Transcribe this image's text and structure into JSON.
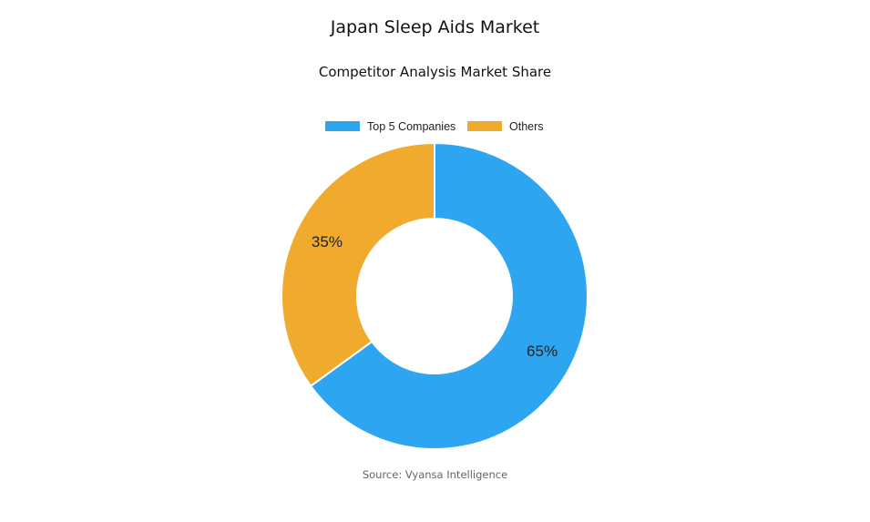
{
  "title": "Japan Sleep Aids Market",
  "subtitle": "Competitor Analysis Market Share",
  "source": "Source: Vyansa Intelligence",
  "chart_data": {
    "type": "pie",
    "donut": true,
    "categories": [
      "Top 5 Companies",
      "Others"
    ],
    "values": [
      65,
      35
    ],
    "data_labels": [
      "65%",
      "35%"
    ],
    "colors": [
      "#2EA5F0",
      "#F0AA2E"
    ],
    "legend_position": "top"
  }
}
